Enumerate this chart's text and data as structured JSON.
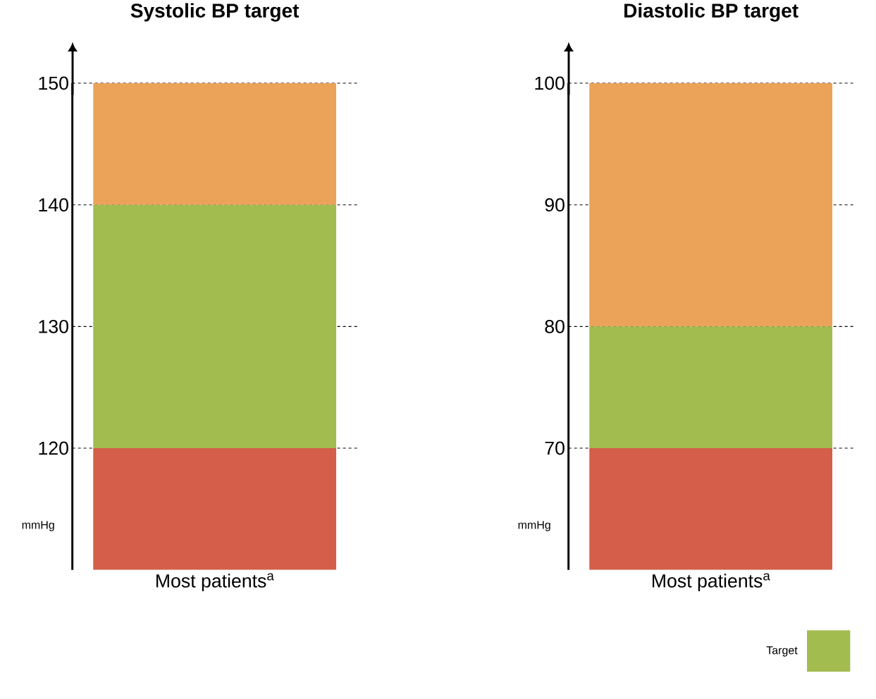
{
  "chart_data": [
    {
      "type": "bar",
      "title": "Systolic BP target",
      "ylabel": "mmHg",
      "categories": [
        "Most patients$^{a}$"
      ],
      "series": [
        {
          "color": "#d45e49",
          "base": [
            110
          ],
          "values": [
            10
          ]
        },
        {
          "color": "#a2bc50",
          "base": [
            120
          ],
          "values": [
            20
          ]
        },
        {
          "color": "#eba35a",
          "base": [
            140
          ],
          "values": [
            10
          ]
        }
      ],
      "ylim": [
        110,
        150
      ],
      "yticks": [
        120,
        130,
        140,
        150
      ],
      "grid": "y"
    },
    {
      "type": "bar",
      "title": "Diastolic BP target",
      "ylabel": "mmHg",
      "categories": [
        "Most patients$^{a}$"
      ],
      "series": [
        {
          "color": "#d45e49",
          "base": [
            60
          ],
          "values": [
            10
          ]
        },
        {
          "name": "Target",
          "color": "#a2bc50",
          "base": [
            70
          ],
          "values": [
            10
          ]
        },
        {
          "color": "#eba35a",
          "base": [
            80
          ],
          "values": [
            20
          ]
        }
      ],
      "ylim": [
        60,
        100
      ],
      "yticks": [
        70,
        80,
        90,
        100
      ],
      "grid": "y",
      "legend": "bottom right"
    }
  ]
}
